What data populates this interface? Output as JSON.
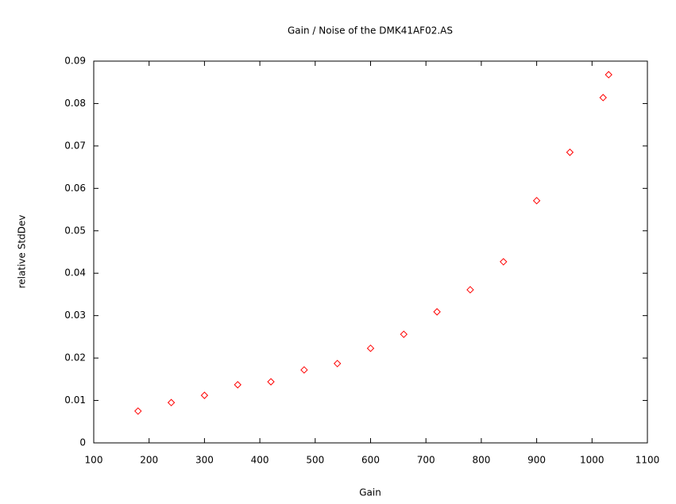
{
  "chart_data": {
    "type": "scatter",
    "title": "Gain / Noise of the DMK41AF02.AS",
    "x_label": "Gain",
    "y_label": "relative StdDev",
    "color": "#ff0000",
    "x": [
      180,
      240,
      300,
      360,
      420,
      480,
      540,
      600,
      660,
      720,
      780,
      840,
      900,
      960,
      1020,
      1030
    ],
    "values": [
      0.0075,
      0.0095,
      0.0112,
      0.0137,
      0.0144,
      0.0172,
      0.0187,
      0.0223,
      0.0256,
      0.0309,
      0.0361,
      0.0427,
      0.0571,
      0.0685,
      0.0814,
      0.0868
    ],
    "xlim": [
      100,
      1100
    ],
    "xticks": [
      100,
      200,
      300,
      400,
      500,
      600,
      700,
      800,
      900,
      1000,
      1100
    ],
    "ylim": [
      0,
      0.09
    ],
    "yticks": [
      0,
      0.01,
      0.02,
      0.03,
      0.04,
      0.05,
      0.06,
      0.07,
      0.08,
      0.09
    ],
    "grid": false
  }
}
